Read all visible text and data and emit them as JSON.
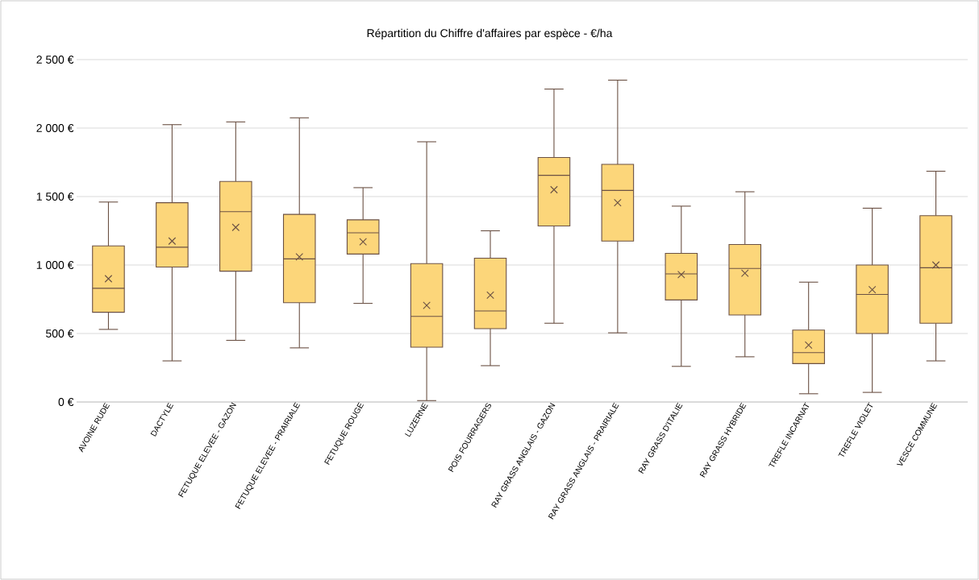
{
  "chart_data": {
    "type": "box",
    "title": "Répartition du Chiffre d'affaires par espèce - €/ha",
    "categories": [
      "AVOINE RUDE",
      "DACTYLE",
      "FETUQUE ELEVEE - GAZON",
      "FETUQUE ELEVEE - PRAIRIALE",
      "FETUQUE ROUGE",
      "LUZERNE",
      "POIS FOURRAGERS",
      "RAY GRASS ANGLAIS - GAZON",
      "RAY GRASS ANGLAIS - PRAIRIALE",
      "RAY GRASS D'ITALIE",
      "RAY GRASS HYBRIDE",
      "TREFLE INCARNAT",
      "TREFLE VIOLET",
      "VESCE COMMUNE"
    ],
    "boxes": [
      {
        "low": 530,
        "q1": 655,
        "median": 830,
        "q3": 1140,
        "high": 1460,
        "mean": 900
      },
      {
        "low": 300,
        "q1": 985,
        "median": 1130,
        "q3": 1455,
        "high": 2025,
        "mean": 1175
      },
      {
        "low": 450,
        "q1": 955,
        "median": 1390,
        "q3": 1610,
        "high": 2045,
        "mean": 1275
      },
      {
        "low": 395,
        "q1": 725,
        "median": 1045,
        "q3": 1370,
        "high": 2075,
        "mean": 1060
      },
      {
        "low": 720,
        "q1": 1080,
        "median": 1235,
        "q3": 1330,
        "high": 1565,
        "mean": 1170
      },
      {
        "low": 10,
        "q1": 400,
        "median": 625,
        "q3": 1010,
        "high": 1900,
        "mean": 705
      },
      {
        "low": 265,
        "q1": 535,
        "median": 665,
        "q3": 1050,
        "high": 1250,
        "mean": 780
      },
      {
        "low": 575,
        "q1": 1285,
        "median": 1655,
        "q3": 1785,
        "high": 2285,
        "mean": 1550
      },
      {
        "low": 505,
        "q1": 1175,
        "median": 1545,
        "q3": 1735,
        "high": 2350,
        "mean": 1455
      },
      {
        "low": 260,
        "q1": 745,
        "median": 935,
        "q3": 1085,
        "high": 1430,
        "mean": 930
      },
      {
        "low": 330,
        "q1": 635,
        "median": 975,
        "q3": 1150,
        "high": 1535,
        "mean": 940
      },
      {
        "low": 60,
        "q1": 280,
        "median": 360,
        "q3": 525,
        "high": 875,
        "mean": 415
      },
      {
        "low": 70,
        "q1": 500,
        "median": 785,
        "q3": 1000,
        "high": 1415,
        "mean": 820
      },
      {
        "low": 300,
        "q1": 575,
        "median": 980,
        "q3": 1360,
        "high": 1685,
        "mean": 1000
      }
    ],
    "color": "#fcd67a",
    "ylim": [
      0,
      2500
    ],
    "yticks": [
      {
        "value": 0,
        "label": "0 €"
      },
      {
        "value": 500,
        "label": "500 €"
      },
      {
        "value": 1000,
        "label": "1 000 €"
      },
      {
        "value": 1500,
        "label": "1 500 €"
      },
      {
        "value": 2000,
        "label": "2 000 €"
      },
      {
        "value": 2500,
        "label": "2 500 €"
      }
    ],
    "grid": "y",
    "marker": "cross"
  }
}
